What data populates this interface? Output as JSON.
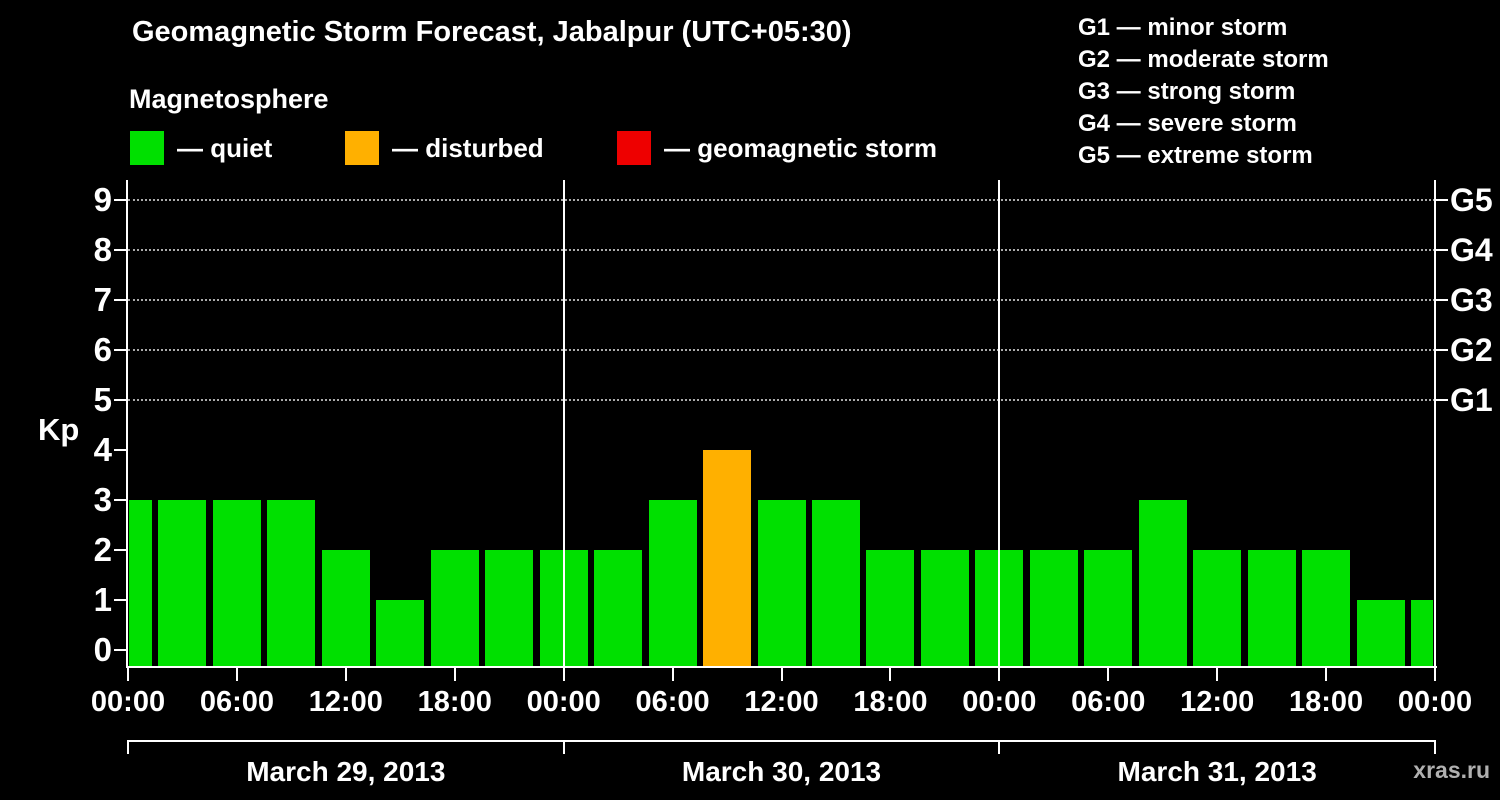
{
  "title": "Geomagnetic Storm Forecast, Jabalpur (UTC+05:30)",
  "subtitle": "Magnetosphere",
  "watermark": "xras.ru",
  "legend": {
    "items": [
      {
        "name": "quiet",
        "label": "— quiet",
        "color": "#00e000"
      },
      {
        "name": "disturbed",
        "label": "— disturbed",
        "color": "#ffb000"
      },
      {
        "name": "storm",
        "label": "— geomagnetic storm",
        "color": "#ee0000"
      }
    ]
  },
  "g_legend": [
    "G1 — minor storm",
    "G2 — moderate storm",
    "G3 — strong storm",
    "G4 — severe storm",
    "G5 — extreme storm"
  ],
  "chart_data": {
    "type": "bar",
    "title": "Geomagnetic Storm Forecast, Jabalpur (UTC+05:30)",
    "ylabel": "Kp",
    "yticks": [
      0,
      1,
      2,
      3,
      4,
      5,
      6,
      7,
      8,
      9
    ],
    "ylim": [
      0,
      9.4
    ],
    "interval_hours": 3,
    "grid": "dotted horizontal lines at Kp 5-9",
    "x_tick_labels": [
      "00:00",
      "06:00",
      "12:00",
      "18:00",
      "00:00",
      "06:00",
      "12:00",
      "18:00",
      "00:00",
      "06:00",
      "12:00",
      "18:00",
      "00:00"
    ],
    "g_levels": [
      {
        "label": "G1",
        "kp": 5
      },
      {
        "label": "G2",
        "kp": 6
      },
      {
        "label": "G3",
        "kp": 7
      },
      {
        "label": "G4",
        "kp": 8
      },
      {
        "label": "G5",
        "kp": 9
      }
    ],
    "days": [
      {
        "date": "March 29, 2013",
        "kp": [
          3,
          3,
          3,
          3,
          2,
          1,
          2,
          2
        ]
      },
      {
        "date": "March 30, 2013",
        "kp": [
          2,
          2,
          3,
          4,
          3,
          3,
          2,
          2
        ]
      },
      {
        "date": "March 31, 2013",
        "kp": [
          2,
          2,
          2,
          3,
          2,
          2,
          2,
          1
        ]
      }
    ],
    "trailing_kp": 1,
    "color_rules": {
      "quiet_kp_max": 3,
      "disturbed_kp": 4,
      "storm_kp_min": 5
    },
    "colors": {
      "quiet": "#00e000",
      "disturbed": "#ffb000",
      "storm": "#ee0000"
    }
  }
}
